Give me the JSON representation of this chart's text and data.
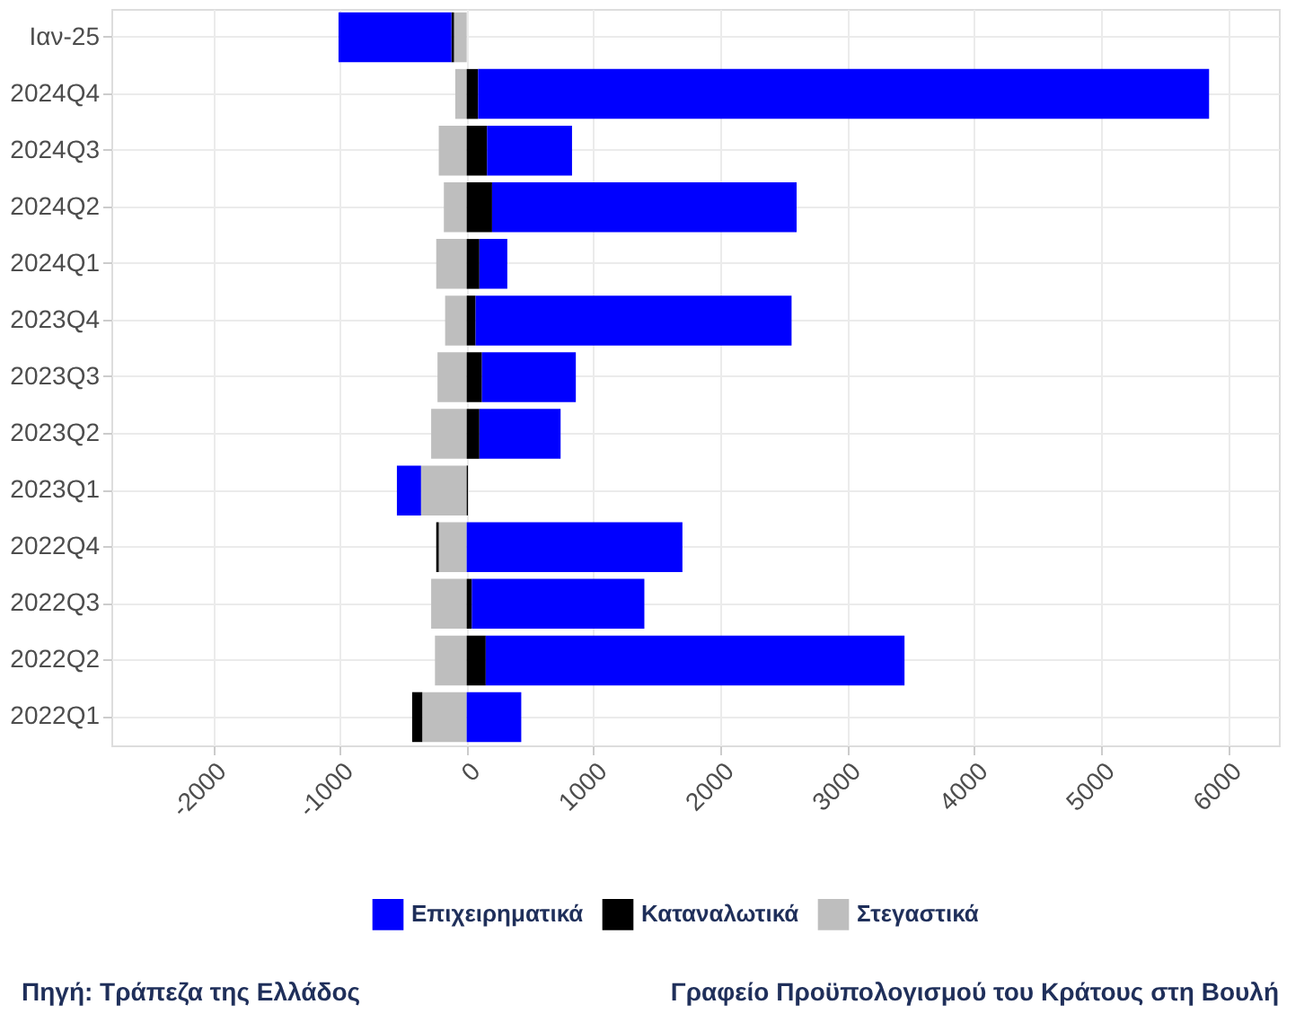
{
  "chart_data": {
    "type": "bar",
    "orientation": "horizontal",
    "stacked": true,
    "categories": [
      "Ιαν-25",
      "2024Q4",
      "2024Q3",
      "2024Q2",
      "2024Q1",
      "2023Q4",
      "2023Q3",
      "2023Q2",
      "2023Q1",
      "2022Q4",
      "2022Q3",
      "2022Q2",
      "2022Q1"
    ],
    "series": [
      {
        "name": "Στεγαστικά",
        "color": "#bebebe",
        "values": [
          -100,
          -90,
          -220,
          -180,
          -240,
          -170,
          -230,
          -280,
          -360,
          -220,
          -280,
          -250,
          -350
        ]
      },
      {
        "name": "Καταναλωτικά",
        "color": "#000000",
        "values": [
          -20,
          90,
          160,
          200,
          100,
          70,
          120,
          100,
          10,
          -20,
          40,
          150,
          -80
        ]
      },
      {
        "name": "Επιχειρηματικά",
        "color": "#0000ff",
        "values": [
          -890,
          5760,
          670,
          2400,
          220,
          2490,
          740,
          640,
          -190,
          1700,
          1360,
          3300,
          430
        ]
      }
    ],
    "xlim": [
      -2800,
      6400
    ],
    "xticks": [
      -2000,
      -1000,
      0,
      1000,
      2000,
      3000,
      4000,
      5000,
      6000
    ],
    "grid": true,
    "legend": "bottom",
    "annotations": [
      "Πηγή: Τράπεζα της Ελλάδος",
      "Γραφείο Προϋπολογισμού του Κράτους στη Βουλή"
    ]
  }
}
